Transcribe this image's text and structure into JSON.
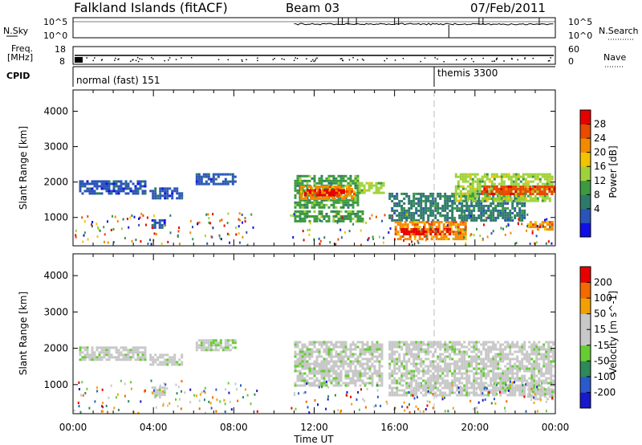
{
  "header": {
    "station": "Falkland Islands (fitACF)",
    "beam": "Beam 03",
    "date": "07/Feb/2011"
  },
  "noise_panel": {
    "left_label": "N.Sky",
    "left_ticks": [
      "10^5",
      "10^0"
    ],
    "right_label": "N.Search",
    "right_ticks": [
      "10^5",
      "10^0"
    ]
  },
  "freq_panel": {
    "left_label_1": "Freq.",
    "left_label_2": "[MHz]",
    "left_ticks": [
      "18",
      "8"
    ],
    "right_label": "Nave",
    "right_ticks": [
      "60",
      "0"
    ]
  },
  "cpid_panel": {
    "label": "CPID",
    "segments": [
      "normal (fast) 151",
      "themis 3300"
    ]
  },
  "colors": {
    "power": [
      "#1010e6",
      "#2a55b8",
      "#2e7a6a",
      "#3c9a40",
      "#9ed23a",
      "#f2c400",
      "#f28a00",
      "#e84a00",
      "#e60000"
    ],
    "velocity": [
      "#1818cc",
      "#2a5acc",
      "#2e8a5a",
      "#66cc33",
      "#c8c8c8",
      "#c8c8c8",
      "#f2a000",
      "#f26a00",
      "#e60000"
    ],
    "separator": "#bbbbbb"
  },
  "chart_data": [
    {
      "type": "heatmap",
      "title": "Power",
      "ylabel": "Slant Range [km]",
      "xlabel": "",
      "xlim": [
        0,
        24
      ],
      "ylim": [
        200,
        4600
      ],
      "yticks": [
        "4000",
        "3000",
        "2000",
        "1000"
      ],
      "colorbar": {
        "label": "Power [dB]",
        "ticks": [
          "28",
          "24",
          "20",
          "16",
          "12",
          "8",
          "4"
        ]
      },
      "regions": [
        {
          "x": [
            0.3,
            3.6
          ],
          "y": [
            1700,
            2050
          ],
          "level": 1
        },
        {
          "x": [
            3.8,
            5.4
          ],
          "y": [
            1550,
            1850
          ],
          "level": 1
        },
        {
          "x": [
            3.9,
            4.6
          ],
          "y": [
            700,
            950
          ],
          "level": 1
        },
        {
          "x": [
            6.1,
            8.1
          ],
          "y": [
            1950,
            2250
          ],
          "level": 1
        },
        {
          "x": [
            11.0,
            14.2
          ],
          "y": [
            1300,
            2200
          ],
          "level": 3
        },
        {
          "x": [
            11.3,
            14.0
          ],
          "y": [
            1500,
            1900
          ],
          "level": 6
        },
        {
          "x": [
            11.5,
            13.5
          ],
          "y": [
            1600,
            1800
          ],
          "level": 8
        },
        {
          "x": [
            11.0,
            14.4
          ],
          "y": [
            900,
            1200
          ],
          "level": 3
        },
        {
          "x": [
            14.2,
            15.4
          ],
          "y": [
            1700,
            2000
          ],
          "level": 4
        },
        {
          "x": [
            15.7,
            22.5
          ],
          "y": [
            900,
            1700
          ],
          "level": 2
        },
        {
          "x": [
            16.0,
            19.5
          ],
          "y": [
            400,
            900
          ],
          "level": 6
        },
        {
          "x": [
            16.3,
            18.8
          ],
          "y": [
            500,
            700
          ],
          "level": 8
        },
        {
          "x": [
            19.0,
            23.9
          ],
          "y": [
            1500,
            2250
          ],
          "level": 4
        },
        {
          "x": [
            20.3,
            23.9
          ],
          "y": [
            1650,
            1900
          ],
          "level": 7
        },
        {
          "x": [
            22.6,
            23.9
          ],
          "y": [
            650,
            900
          ],
          "level": 6
        }
      ]
    },
    {
      "type": "heatmap",
      "title": "Velocity",
      "ylabel": "Slant Range [km]",
      "xlabel": "Time UT",
      "xlim": [
        0,
        24
      ],
      "ylim": [
        200,
        4600
      ],
      "xticks": [
        "00:00",
        "04:00",
        "08:00",
        "12:00",
        "16:00",
        "20:00",
        "00:00"
      ],
      "yticks": [
        "4000",
        "3000",
        "2000",
        "1000"
      ],
      "colorbar": {
        "label": "Velocity [m s^-1]",
        "ticks": [
          "200",
          "100",
          "50",
          "15",
          "-15",
          "-50",
          "-100",
          "-200"
        ]
      },
      "regions": [
        {
          "x": [
            0.3,
            3.6
          ],
          "y": [
            1700,
            2050
          ],
          "level": 4
        },
        {
          "x": [
            3.8,
            5.4
          ],
          "y": [
            1550,
            1850
          ],
          "level": 4
        },
        {
          "x": [
            3.9,
            4.6
          ],
          "y": [
            650,
            950
          ],
          "level": 4
        },
        {
          "x": [
            6.1,
            8.1
          ],
          "y": [
            1950,
            2250
          ],
          "level": 4
        },
        {
          "x": [
            11.0,
            15.4
          ],
          "y": [
            1000,
            2200
          ],
          "level": 4
        },
        {
          "x": [
            15.7,
            23.9
          ],
          "y": [
            700,
            2200
          ],
          "level": 4
        },
        {
          "x": [
            22.6,
            23.9
          ],
          "y": [
            600,
            900
          ],
          "level": 4
        }
      ]
    }
  ]
}
